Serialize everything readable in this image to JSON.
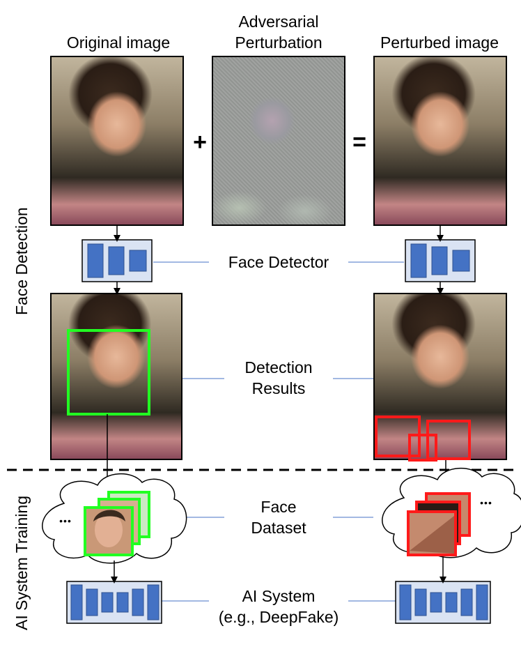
{
  "headers": {
    "original": "Original image",
    "perturbation_line1": "Adversarial",
    "perturbation_line2": "Perturbation",
    "perturbed": "Perturbed image"
  },
  "operators": {
    "plus": "+",
    "equals": "="
  },
  "labels": {
    "face_detector": "Face Detector",
    "detection_line1": "Detection",
    "detection_line2": "Results",
    "dataset_line1": "Face",
    "dataset_line2": "Dataset",
    "ai_line1": "AI System",
    "ai_line2": "(e.g., DeepFake)"
  },
  "section_labels": {
    "face_detection": "Face Detection",
    "ai_training": "AI System Training"
  },
  "ellipsis": "•••",
  "colors": {
    "block_fill": "#4472c4",
    "block_bg": "#dae3f3",
    "detect_ok": "#22ff22",
    "detect_bad": "#ff1a1a",
    "connector": "#4472c4"
  }
}
